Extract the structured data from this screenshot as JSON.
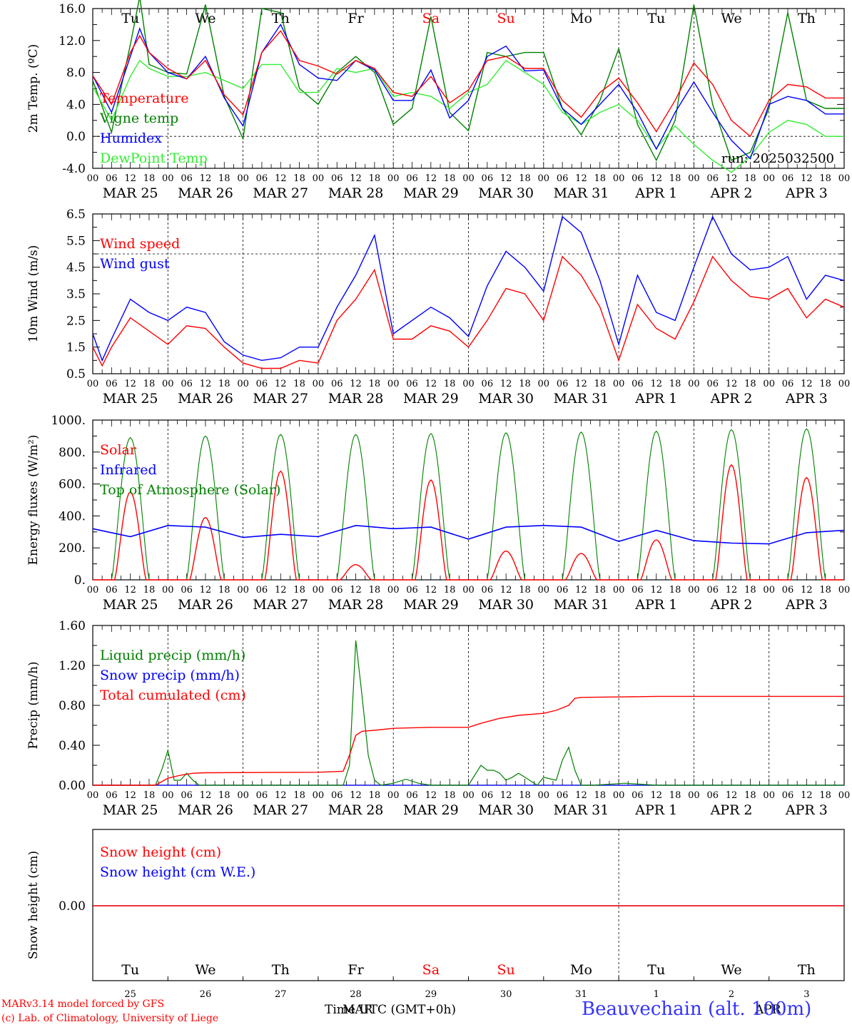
{
  "footer": {
    "model_credit": "MARv3.14 model forced by GFS",
    "lab_credit": "(c) Lab. of Climatology, University of Liege",
    "time_label": "Time UTC (GMT+0h)",
    "station": "Beauvechain (alt. 100m)",
    "month_overlay_1": "MAR",
    "month_overlay_2": "APR"
  },
  "colors": {
    "red": "#ff0000",
    "green": "#008000",
    "blue": "#0000ff",
    "lightgreen": "#33ee33",
    "station_blue": "#3333ff"
  },
  "days": {
    "weekday": [
      "Tu",
      "We",
      "Th",
      "Fr",
      "Sa",
      "Su",
      "Mo",
      "Tu",
      "We",
      "Th"
    ],
    "weekend_flags": [
      false,
      false,
      false,
      false,
      true,
      true,
      false,
      false,
      false,
      false
    ],
    "date_labels": [
      "MAR 25",
      "MAR 26",
      "MAR 27",
      "MAR 28",
      "MAR 29",
      "MAR 30",
      "MAR 31",
      "APR  1",
      "APR  2",
      "APR  3"
    ],
    "day_numbers": [
      "25",
      "26",
      "27",
      "28",
      "29",
      "30",
      "31",
      "1",
      "2",
      "3"
    ],
    "hour_ticks": [
      "00",
      "06",
      "12",
      "18"
    ]
  },
  "chart_data": [
    {
      "type": "line",
      "id": "temp",
      "ylabel": "2m Temp. (ºC)",
      "ylim": [
        -4,
        16
      ],
      "yticks": [
        "16.0",
        "12.0",
        "8.0",
        "4.0",
        "0.0",
        "-4.0"
      ],
      "ref_line": 0,
      "run": "run: 2025032500",
      "x_unit": "hours since 2025-03-25 00 UTC",
      "series": [
        {
          "name": "Temperature",
          "color": "red",
          "x": [
            0,
            6,
            12,
            15,
            18,
            24,
            30,
            36,
            42,
            48,
            54,
            60,
            66,
            72,
            78,
            84,
            90,
            96,
            102,
            108,
            114,
            120,
            126,
            132,
            138,
            144,
            150,
            156,
            162,
            168,
            174,
            180,
            186,
            192,
            198,
            204,
            210,
            216,
            222,
            228,
            234,
            240
          ],
          "y": [
            7.6,
            4.0,
            10.5,
            12.6,
            10.5,
            8.5,
            7.2,
            9.5,
            5.2,
            2.7,
            10.5,
            13.2,
            9.5,
            8.8,
            7.8,
            9.5,
            8.5,
            5.5,
            5.0,
            7.5,
            4.2,
            5.8,
            9.5,
            10.0,
            8.5,
            8.5,
            4.5,
            2.4,
            5.5,
            7.3,
            4.2,
            0.6,
            4.5,
            9.2,
            6.5,
            2.0,
            0.0,
            4.5,
            6.5,
            6.2,
            4.8,
            4.8
          ]
        },
        {
          "name": "Vigne temp",
          "color": "green",
          "x": [
            0,
            6,
            12,
            15,
            18,
            24,
            30,
            36,
            42,
            48,
            54,
            60,
            66,
            72,
            78,
            84,
            90,
            96,
            102,
            108,
            114,
            120,
            126,
            132,
            138,
            144,
            150,
            156,
            162,
            168,
            174,
            180,
            186,
            192,
            198,
            204,
            210,
            216,
            222,
            228,
            234,
            240
          ],
          "y": [
            7.0,
            0.5,
            11.5,
            17.5,
            9.0,
            8.0,
            7.8,
            16.5,
            5.0,
            -0.3,
            16.0,
            15.5,
            6.0,
            4.0,
            8.0,
            10.0,
            8.0,
            1.5,
            3.5,
            15.0,
            3.0,
            0.7,
            10.5,
            10.0,
            10.5,
            10.5,
            3.5,
            0.2,
            4.5,
            11.0,
            1.5,
            -3.0,
            2.0,
            16.5,
            4.0,
            -3.0,
            -2.0,
            3.5,
            15.5,
            4.5,
            3.5,
            3.5
          ]
        },
        {
          "name": "Humidex",
          "color": "blue",
          "x": [
            0,
            6,
            12,
            15,
            18,
            24,
            30,
            36,
            42,
            48,
            54,
            60,
            66,
            72,
            78,
            84,
            90,
            96,
            102,
            108,
            114,
            120,
            126,
            132,
            138,
            144,
            150,
            156,
            162,
            168,
            174,
            180,
            186,
            192,
            198,
            204,
            210,
            216,
            222,
            228,
            234,
            240
          ],
          "y": [
            7.6,
            3.0,
            10.0,
            13.5,
            10.5,
            8.0,
            7.2,
            10.0,
            4.8,
            1.3,
            10.5,
            14.0,
            9.0,
            7.3,
            7.0,
            9.5,
            8.3,
            4.5,
            4.5,
            8.3,
            2.3,
            4.5,
            10.0,
            11.3,
            8.2,
            8.3,
            3.5,
            1.5,
            4.0,
            6.5,
            3.0,
            -1.6,
            3.0,
            6.8,
            3.0,
            -0.5,
            -2.8,
            4.0,
            5.0,
            4.5,
            2.8,
            2.8
          ]
        },
        {
          "name": "DewPoint Temp",
          "color": "lightgreen",
          "x": [
            0,
            6,
            12,
            15,
            18,
            24,
            30,
            36,
            42,
            48,
            54,
            60,
            66,
            72,
            78,
            84,
            90,
            96,
            102,
            108,
            114,
            120,
            126,
            132,
            138,
            144,
            150,
            156,
            162,
            168,
            174,
            180,
            186,
            192,
            198,
            204,
            210,
            216,
            222,
            228,
            234,
            240
          ],
          "y": [
            6.2,
            2.0,
            7.5,
            9.5,
            8.5,
            7.5,
            7.5,
            8.0,
            7.0,
            6.0,
            9.0,
            9.0,
            5.5,
            5.5,
            8.5,
            8.0,
            8.5,
            5.0,
            5.5,
            5.0,
            3.5,
            5.5,
            6.5,
            9.5,
            8.0,
            6.5,
            3.0,
            1.5,
            3.0,
            4.0,
            2.0,
            -1.5,
            1.3,
            -1.0,
            -3.0,
            -4.5,
            -2.5,
            0.5,
            2.0,
            1.5,
            0.0,
            0.0
          ]
        }
      ]
    },
    {
      "type": "line",
      "id": "wind",
      "ylabel": "10m Wind (m/s)",
      "ylim": [
        0.5,
        6.5
      ],
      "yticks": [
        "6.5",
        "5.5",
        "4.5",
        "3.5",
        "2.5",
        "1.5",
        "0.5"
      ],
      "ref_line": 5.0,
      "x_unit": "hours since 2025-03-25 00 UTC",
      "series": [
        {
          "name": "Wind speed",
          "color": "red",
          "x": [
            0,
            3,
            6,
            12,
            18,
            24,
            30,
            36,
            42,
            48,
            54,
            60,
            66,
            72,
            78,
            84,
            90,
            96,
            102,
            108,
            114,
            120,
            126,
            132,
            138,
            144,
            150,
            156,
            162,
            168,
            174,
            180,
            186,
            192,
            198,
            204,
            210,
            216,
            222,
            228,
            234,
            240
          ],
          "y": [
            1.5,
            0.8,
            1.5,
            2.6,
            2.1,
            1.6,
            2.3,
            2.2,
            1.5,
            0.9,
            0.7,
            0.7,
            1.0,
            0.9,
            2.5,
            3.3,
            4.4,
            1.8,
            1.8,
            2.3,
            2.1,
            1.5,
            2.5,
            3.7,
            3.5,
            2.5,
            4.9,
            4.2,
            3.0,
            1.0,
            3.1,
            2.2,
            1.8,
            3.2,
            4.9,
            4.0,
            3.4,
            3.3,
            3.7,
            2.6,
            3.3,
            3.0
          ]
        },
        {
          "name": "Wind gust",
          "color": "blue",
          "x": [
            0,
            3,
            6,
            12,
            18,
            24,
            30,
            36,
            42,
            48,
            54,
            60,
            66,
            72,
            78,
            84,
            90,
            96,
            102,
            108,
            114,
            120,
            126,
            132,
            138,
            144,
            150,
            156,
            162,
            168,
            174,
            180,
            186,
            192,
            198,
            204,
            210,
            216,
            222,
            228,
            234,
            240
          ],
          "y": [
            2.0,
            1.0,
            1.8,
            3.3,
            2.8,
            2.5,
            3.0,
            2.8,
            1.7,
            1.2,
            1.0,
            1.1,
            1.5,
            1.5,
            3.0,
            4.2,
            5.7,
            2.0,
            2.5,
            3.0,
            2.6,
            1.9,
            3.8,
            5.1,
            4.5,
            3.6,
            6.4,
            5.8,
            4.0,
            1.6,
            4.2,
            2.8,
            2.5,
            4.5,
            6.4,
            5.0,
            4.4,
            4.5,
            4.9,
            3.3,
            4.2,
            4.0
          ]
        }
      ]
    },
    {
      "type": "line",
      "id": "energy",
      "ylabel": "Energy fluxes (W/m²)",
      "ylim": [
        0,
        1000
      ],
      "yticks": [
        "1000.",
        "800.",
        "600.",
        "400.",
        "200.",
        "0."
      ],
      "x_unit": "hours since 2025-03-25 00 UTC",
      "series": [
        {
          "name": "Solar",
          "color": "red",
          "day_peaks": [
            550,
            390,
            680,
            95,
            625,
            180,
            165,
            250,
            720,
            640
          ]
        },
        {
          "name": "Infrared",
          "color": "blue",
          "x": [
            0,
            12,
            24,
            36,
            48,
            60,
            72,
            84,
            96,
            108,
            120,
            132,
            144,
            156,
            168,
            180,
            192,
            204,
            216,
            228,
            240
          ],
          "y": [
            320,
            270,
            340,
            330,
            265,
            285,
            270,
            340,
            320,
            330,
            255,
            330,
            340,
            330,
            240,
            310,
            245,
            230,
            225,
            295,
            310
          ]
        },
        {
          "name": "Top of Atmosphere (Solar)",
          "color": "green",
          "day_peaks": [
            890,
            900,
            910,
            910,
            915,
            920,
            925,
            930,
            940,
            945
          ]
        }
      ]
    },
    {
      "type": "line",
      "id": "precip",
      "ylabel": "Precip (mm/h)",
      "ylim": [
        0,
        1.6
      ],
      "yticks": [
        "1.60",
        "1.20",
        "0.80",
        "0.40",
        "0.00"
      ],
      "x_unit": "hours since 2025-03-25 00 UTC",
      "series": [
        {
          "name": "Liquid precip (mm/h)",
          "color": "green",
          "x": [
            0,
            20,
            22,
            24,
            26,
            28,
            30,
            32,
            34,
            36,
            72,
            80,
            82,
            84,
            86,
            88,
            90,
            92,
            96,
            100,
            104,
            108,
            112,
            120,
            124,
            126,
            128,
            130,
            132,
            134,
            136,
            138,
            142,
            144,
            148,
            150,
            152,
            154,
            156,
            158,
            160,
            170,
            180,
            200,
            240
          ],
          "y": [
            0,
            0,
            0.15,
            0.35,
            0.05,
            0.05,
            0.12,
            0.05,
            0,
            0,
            0,
            0,
            0.2,
            1.45,
            0.9,
            0.3,
            0.05,
            0,
            0.02,
            0.06,
            0.02,
            0,
            0,
            0,
            0.2,
            0.15,
            0.15,
            0.12,
            0.05,
            0.08,
            0.12,
            0.08,
            0.0,
            0.08,
            0.05,
            0.25,
            0.38,
            0.15,
            0.0,
            0.0,
            0,
            0.02,
            0,
            0,
            0
          ]
        },
        {
          "name": "Snow precip (mm/h)",
          "color": "blue",
          "x": [
            0,
            240
          ],
          "y": [
            0,
            0
          ]
        },
        {
          "name": "Total cumulated (cm)",
          "color": "red",
          "x": [
            0,
            20,
            24,
            28,
            32,
            36,
            72,
            80,
            82,
            84,
            86,
            90,
            96,
            108,
            120,
            124,
            130,
            136,
            144,
            148,
            152,
            154,
            156,
            170,
            180,
            200,
            240
          ],
          "y": [
            0,
            0,
            0.07,
            0.1,
            0.12,
            0.125,
            0.13,
            0.14,
            0.3,
            0.5,
            0.54,
            0.55,
            0.57,
            0.58,
            0.58,
            0.62,
            0.67,
            0.7,
            0.72,
            0.75,
            0.8,
            0.87,
            0.88,
            0.885,
            0.89,
            0.89,
            0.89
          ]
        }
      ]
    },
    {
      "type": "line",
      "id": "snow",
      "ylabel": "Snow height (cm)",
      "yticks": [
        "0.00"
      ],
      "x_unit": "hours since 2025-03-25 00 UTC",
      "series": [
        {
          "name": "Snow height (cm)",
          "color": "red",
          "x": [
            0,
            240
          ],
          "y": [
            0,
            0
          ]
        },
        {
          "name": "Snow height (cm W.E.)",
          "color": "blue",
          "x": [
            0,
            240
          ],
          "y": [
            0,
            0
          ]
        }
      ]
    }
  ]
}
